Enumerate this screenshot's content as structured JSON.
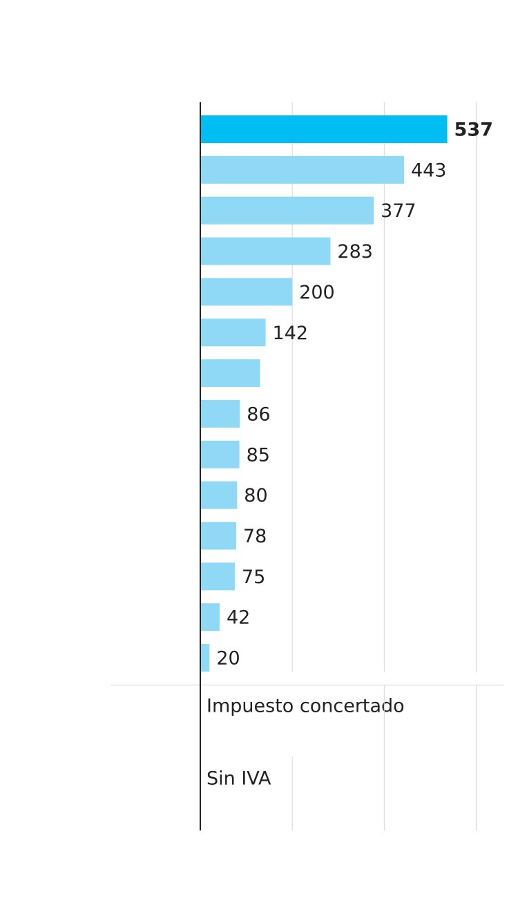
{
  "chart_data": {
    "type": "barh",
    "values": [
      537,
      443,
      377,
      283,
      200,
      142,
      130,
      86,
      85,
      80,
      78,
      75,
      42,
      20
    ],
    "value_labels": [
      "537",
      "443",
      "377",
      "283",
      "200",
      "142",
      null,
      "86",
      "85",
      "80",
      "78",
      "75",
      "42",
      "20"
    ],
    "colors": [
      "#00bdf2",
      "#8fd8f6",
      "#8fd8f6",
      "#8fd8f6",
      "#8fd8f6",
      "#8fd8f6",
      "#8fd8f6",
      "#8fd8f6",
      "#8fd8f6",
      "#8fd8f6",
      "#8fd8f6",
      "#8fd8f6",
      "#8fd8f6",
      "#8fd8f6"
    ],
    "xlim": [
      0,
      600
    ],
    "xticks": [
      0,
      200,
      400,
      600
    ],
    "grid": true,
    "annotations": [
      "Impuesto concertado",
      "Sin IVA"
    ]
  }
}
